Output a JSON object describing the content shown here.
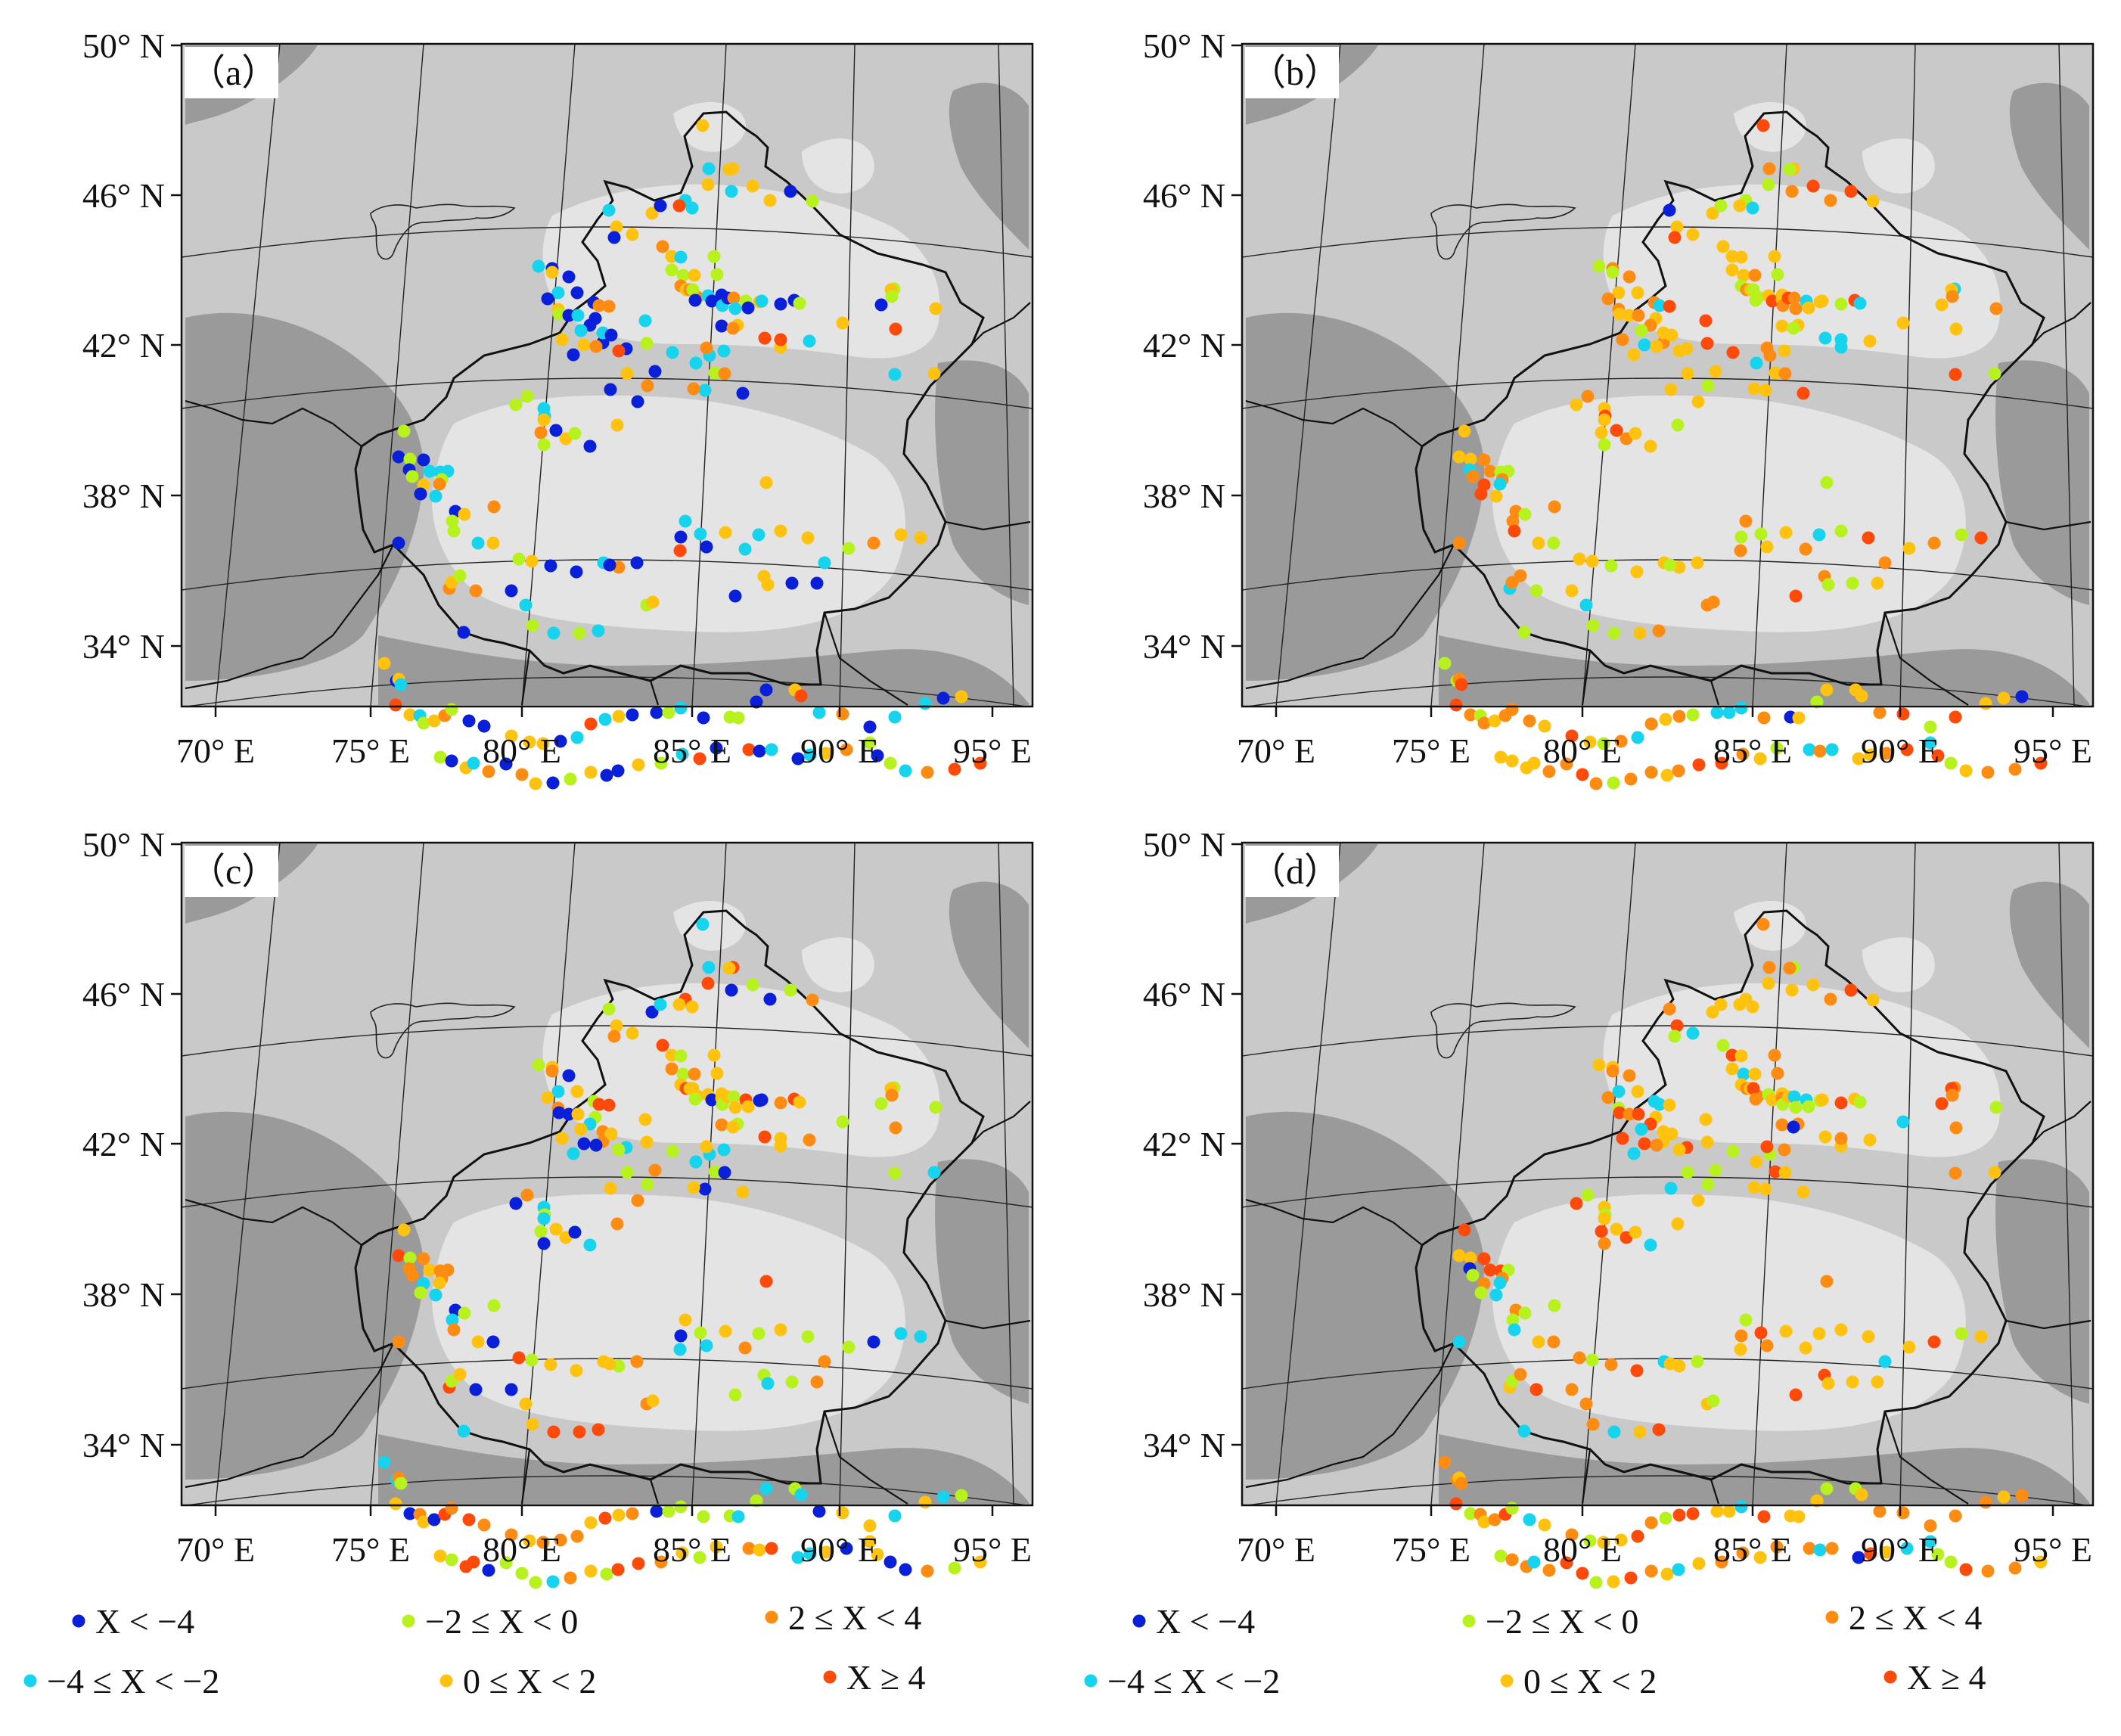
{
  "panels": [
    {
      "label": "（a）",
      "id": "a"
    },
    {
      "label": "（b）",
      "id": "b"
    },
    {
      "label": "（c）",
      "id": "c"
    },
    {
      "label": "（d）",
      "id": "d"
    }
  ],
  "lat_labels": [
    "50° N",
    "46° N",
    "42° N",
    "38° N",
    "34° N"
  ],
  "lon_labels": [
    "70° E",
    "75° E",
    "80° E",
    "85° E",
    "90° E",
    "95° E"
  ],
  "legend": [
    {
      "label": "X < −4",
      "color": "#0a1fd8"
    },
    {
      "label": "−2 ≤ X < 0",
      "color": "#b7f21f"
    },
    {
      "label": "2 ≤ X < 4",
      "color": "#ff8c12"
    },
    {
      "label": "−4 ≤ X < −2",
      "color": "#16d3ee"
    },
    {
      "label": "0 ≤ X < 2",
      "color": "#ffc20e"
    },
    {
      "label": "X ≥ 4",
      "color": "#ff4a0a"
    }
  ],
  "colors": {
    "c1": "#0a1fd8",
    "c2": "#16d3ee",
    "c3": "#b7f21f",
    "c4": "#ffc20e",
    "c5": "#ff8c12",
    "c6": "#ff4a0a"
  }
}
